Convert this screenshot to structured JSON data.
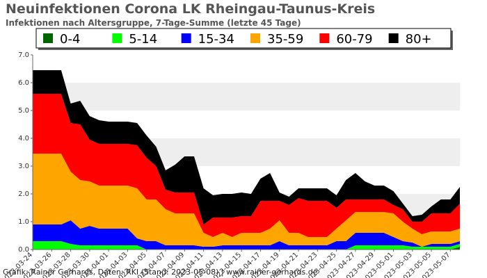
{
  "chart_data": {
    "type": "area",
    "stacked": true,
    "title": "Neuinfektionen Corona LK Rheingau-Taunus-Kreis",
    "subtitle": "Infektionen nach Altersgruppe, 7-Tage-Summe (letzte 45 Tage)",
    "x": [
      "2023-03-24",
      "2023-03-25",
      "2023-03-26",
      "2023-03-27",
      "2023-03-28",
      "2023-03-29",
      "2023-03-30",
      "2023-03-31",
      "2023-04-01",
      "2023-04-02",
      "2023-04-03",
      "2023-04-04",
      "2023-04-05",
      "2023-04-06",
      "2023-04-07",
      "2023-04-08",
      "2023-04-09",
      "2023-04-10",
      "2023-04-11",
      "2023-04-12",
      "2023-04-13",
      "2023-04-14",
      "2023-04-15",
      "2023-04-16",
      "2023-04-17",
      "2023-04-18",
      "2023-04-19",
      "2023-04-20",
      "2023-04-21",
      "2023-04-22",
      "2023-04-23",
      "2023-04-24",
      "2023-04-25",
      "2023-04-26",
      "2023-04-27",
      "2023-04-28",
      "2023-04-29",
      "2023-04-30",
      "2023-05-01",
      "2023-05-02",
      "2023-05-03",
      "2023-05-04",
      "2023-05-05",
      "2023-05-06",
      "2023-05-07",
      "2023-05-08"
    ],
    "x_tick_labels": [
      "2023-03-24",
      "2023-03-26",
      "2023-03-28",
      "2023-03-30",
      "2023-04-01",
      "2023-04-03",
      "2023-04-05",
      "2023-04-07",
      "2023-04-09",
      "2023-04-11",
      "2023-04-13",
      "2023-04-15",
      "2023-04-17",
      "2023-04-19",
      "2023-04-21",
      "2023-04-23",
      "2023-04-25",
      "2023-04-27",
      "2023-04-29",
      "2023-05-01",
      "2023-05-03",
      "2023-05-05",
      "2023-05-07"
    ],
    "ylim": [
      0,
      7
    ],
    "y_ticks": [
      "0.0",
      "1.0",
      "2.0",
      "3.0",
      "4.0",
      "5.0",
      "6.0",
      "7.0"
    ],
    "grid": "alternating horizontal bands",
    "legend_position": "top",
    "series": [
      {
        "name": "0-4",
        "color": "#006400",
        "values": [
          0,
          0,
          0,
          0,
          0,
          0,
          0,
          0,
          0,
          0,
          0,
          0,
          0,
          0,
          0,
          0,
          0,
          0,
          0,
          0,
          0,
          0,
          0,
          0,
          0,
          0,
          0,
          0,
          0,
          0,
          0,
          0,
          0,
          0,
          0,
          0,
          0,
          0,
          0,
          0,
          0,
          0,
          0,
          0,
          0,
          0.1
        ]
      },
      {
        "name": "5-14",
        "color": "#00ff00",
        "values": [
          0.3,
          0.3,
          0.3,
          0.3,
          0.2,
          0.15,
          0.15,
          0.15,
          0.15,
          0.15,
          0.15,
          0.15,
          0,
          0,
          0,
          0,
          0,
          0,
          0,
          0,
          0,
          0,
          0,
          0,
          0,
          0,
          0,
          0,
          0,
          0,
          0,
          0,
          0,
          0,
          0.15,
          0.15,
          0.15,
          0.15,
          0.15,
          0.15,
          0.1,
          0.1,
          0.1,
          0.1,
          0.1,
          0.1
        ]
      },
      {
        "name": "15-34",
        "color": "#0000ff",
        "values": [
          0.6,
          0.6,
          0.6,
          0.6,
          0.85,
          0.6,
          0.7,
          0.6,
          0.6,
          0.6,
          0.6,
          0.25,
          0.3,
          0.3,
          0.15,
          0.15,
          0.15,
          0.15,
          0.1,
          0.1,
          0.15,
          0.15,
          0.15,
          0.15,
          0.15,
          0.15,
          0.3,
          0.15,
          0.15,
          0.15,
          0.15,
          0.15,
          0.3,
          0.3,
          0.45,
          0.45,
          0.45,
          0.45,
          0.3,
          0.15,
          0.15,
          0,
          0.1,
          0.1,
          0.1,
          0.1
        ]
      },
      {
        "name": "35-59",
        "color": "#ffa500",
        "values": [
          2.55,
          2.55,
          2.55,
          2.55,
          1.75,
          1.75,
          1.6,
          1.55,
          1.55,
          1.55,
          1.55,
          1.8,
          1.5,
          1.5,
          1.3,
          1.15,
          1.15,
          1.15,
          0.5,
          0.35,
          0.45,
          0.3,
          0.45,
          0.45,
          0.45,
          0.6,
          0.75,
          0.45,
          0.45,
          0.3,
          0.3,
          0.3,
          0.45,
          0.75,
          0.75,
          0.75,
          0.75,
          0.75,
          0.85,
          0.7,
          0.5,
          0.45,
          0.45,
          0.45,
          0.45,
          0.45
        ]
      },
      {
        "name": "60-79",
        "color": "#ff0000",
        "values": [
          2.15,
          2.15,
          2.15,
          2.15,
          1.75,
          2.0,
          1.5,
          1.5,
          1.5,
          1.5,
          1.5,
          1.55,
          1.5,
          1.2,
          0.7,
          0.75,
          0.75,
          0.75,
          0.3,
          0.7,
          0.55,
          0.7,
          0.6,
          0.6,
          1.15,
          1.0,
          0.7,
          1.0,
          1.25,
          1.3,
          1.3,
          1.3,
          0.75,
          0.75,
          0.45,
          0.45,
          0.45,
          0.45,
          0.3,
          0.45,
          0.25,
          0.45,
          0.65,
          0.65,
          0.65,
          0.9
        ]
      },
      {
        "name": "80+",
        "color": "#000000",
        "values": [
          0.85,
          0.85,
          0.85,
          0.85,
          0.7,
          0.85,
          0.85,
          0.85,
          0.8,
          0.8,
          0.8,
          0.8,
          0.8,
          0.7,
          0.7,
          1.0,
          1.3,
          1.3,
          1.3,
          0.8,
          0.85,
          0.85,
          0.85,
          0.8,
          0.8,
          1.0,
          0.3,
          0.3,
          0.35,
          0.45,
          0.45,
          0.45,
          0.45,
          0.7,
          0.95,
          0.65,
          0.5,
          0.5,
          0.5,
          0.2,
          0.2,
          0.25,
          0.25,
          0.5,
          0.5,
          0.6
        ]
      }
    ]
  },
  "footer": "Grafik: Rainer Gerhards, Daten: RKI (Stand: 2023-05-08) | www.rainer-gerhards.de"
}
